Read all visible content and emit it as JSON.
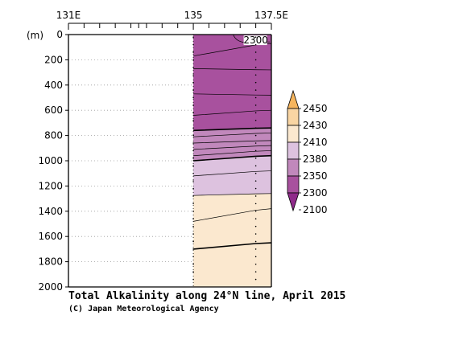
{
  "chart_data": {
    "type": "heatmap",
    "title": "Total Alkalinity along 24°N line, April 2015",
    "credit": "(C) Japan Meteorological Agency",
    "x_tick_labels": [
      "131E",
      "135",
      "137.5E"
    ],
    "x_ticks_lon": [
      131,
      131.5,
      132,
      132.5,
      133,
      133.25,
      133.5,
      134,
      134.5,
      135,
      135.5,
      136,
      136.5,
      137,
      137.5
    ],
    "xlim": [
      131,
      137.5
    ],
    "data_section_lon": [
      135,
      137.5
    ],
    "station_lons": [
      135,
      137
    ],
    "y_unit_label": "(m)",
    "y_tick_labels": [
      "0",
      "200",
      "400",
      "600",
      "800",
      "1000",
      "1200",
      "1400",
      "1600",
      "1800",
      "2000"
    ],
    "ylim": [
      0,
      2000
    ],
    "y_reversed": true,
    "grid": "dotted horizontal",
    "bands": [
      {
        "depth_top": 0,
        "depth_bottom_at_135": 760,
        "depth_bottom_at_137_5": 740,
        "color": "#a8519e"
      },
      {
        "depth_top_at_135": 760,
        "depth_top_at_137_5": 740,
        "depth_bottom_at_135": 1000,
        "depth_bottom_at_137_5": 960,
        "color": "#c188bc"
      },
      {
        "depth_top_at_135": 1000,
        "depth_top_at_137_5": 960,
        "depth_bottom_at_135": 1275,
        "depth_bottom_at_137_5": 1260,
        "color": "#ddc2df"
      },
      {
        "depth_top_at_135": 1275,
        "depth_top_at_137_5": 1260,
        "depth_bottom": 2000,
        "color": "#fbe8cf"
      }
    ],
    "contours": [
      {
        "depths_at_135_137_5": [
          170,
          70
        ],
        "weight": "thin"
      },
      {
        "depths_at_135_137_5": [
          270,
          280
        ],
        "weight": "thin"
      },
      {
        "depths_at_135_137_5": [
          470,
          480
        ],
        "weight": "thin"
      },
      {
        "depths_at_135_137_5": [
          640,
          600
        ],
        "weight": "thin"
      },
      {
        "depths_at_135_137_5": [
          760,
          740
        ],
        "weight": "bold"
      },
      {
        "depths_at_135_137_5": [
          810,
          780
        ],
        "weight": "thin"
      },
      {
        "depths_at_135_137_5": [
          860,
          840
        ],
        "weight": "thin"
      },
      {
        "depths_at_135_137_5": [
          910,
          880
        ],
        "weight": "thin"
      },
      {
        "depths_at_135_137_5": [
          960,
          920
        ],
        "weight": "thin"
      },
      {
        "depths_at_135_137_5": [
          1000,
          960
        ],
        "weight": "bold"
      },
      {
        "depths_at_135_137_5": [
          1120,
          1080
        ],
        "weight": "thin"
      },
      {
        "depths_at_135_137_5": [
          1275,
          1260
        ],
        "weight": "thin"
      },
      {
        "depths_at_135_137_5": [
          1480,
          1380
        ],
        "weight": "thin"
      },
      {
        "depths_at_135_137_5": [
          1700,
          1650
        ],
        "weight": "bold"
      }
    ],
    "contour_label": {
      "text": "2300",
      "lon": 137.0,
      "depth": 45
    },
    "legend": {
      "position": "right",
      "levels": [
        "2450",
        "2430",
        "2410",
        "2380",
        "2350",
        "2300",
        "2100"
      ],
      "colors": [
        "#f6b55d",
        "#f9d5a3",
        "#fbe8cf",
        "#ddc2df",
        "#c188bc",
        "#a8519e",
        "#8f2b8a"
      ],
      "top_arrow_color": "#f6b55d",
      "bottom_arrow_color": "#8f2b8a"
    }
  }
}
